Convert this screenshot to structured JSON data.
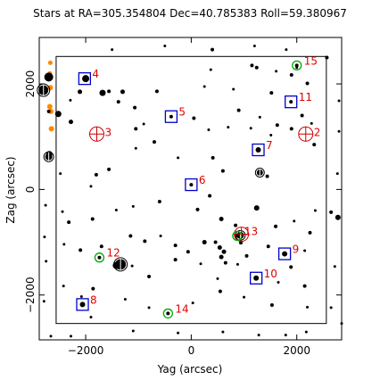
{
  "chart_data": {
    "type": "scatter",
    "title": "Stars at RA=305.354804 Dec=40.785383 Roll=59.380967",
    "xlabel": "Yag (arcsec)",
    "ylabel": "Zag (arcsec)",
    "xlim": [
      -2850,
      2880
    ],
    "ylim": [
      -2850,
      2880
    ],
    "reversed_x": true,
    "x_ticks": [
      -2000,
      0,
      2000
    ],
    "y_ticks": [
      -2000,
      0,
      2000
    ],
    "x_ticklabels": [
      "2000",
      "0",
      "−2000"
    ],
    "y_ticklabels": [
      "−2000",
      "0",
      "2000"
    ],
    "ccd_box": [
      -2560,
      2560,
      -2540,
      2520
    ],
    "label_color": "#e00000",
    "guide_color": "#0000cc",
    "acq_color": "#00aa00",
    "fid_color": "#cc0000",
    "bad_color": "#ff8800",
    "guide_stars": [
      {
        "id": "4",
        "x": 2020,
        "y": 2100
      },
      {
        "id": "5",
        "x": 380,
        "y": 1380
      },
      {
        "id": "6",
        "x": 0,
        "y": 90
      },
      {
        "id": "7",
        "x": -1270,
        "y": 750
      },
      {
        "id": "8",
        "x": 2060,
        "y": -2180
      },
      {
        "id": "9",
        "x": -1770,
        "y": -1220
      },
      {
        "id": "10",
        "x": -1230,
        "y": -1680
      },
      {
        "id": "11",
        "x": -1890,
        "y": 1660
      }
    ],
    "acq_stars": [
      {
        "id": "12",
        "x": 1740,
        "y": -1290
      },
      {
        "id": "13",
        "x": -870,
        "y": -880
      },
      {
        "id": "14",
        "x": 440,
        "y": -2350
      },
      {
        "id": "15",
        "x": -2000,
        "y": 2350
      }
    ],
    "fid_lights": [
      {
        "id": "2",
        "x": -2170,
        "y": 1050
      },
      {
        "id": "3",
        "x": 1790,
        "y": 1050
      },
      {
        "id": "f",
        "x": -950,
        "y": -850
      }
    ],
    "field_stars": [
      [
        2000,
        2100,
        4
      ],
      [
        1560,
        1860,
        2
      ],
      [
        1300,
        1850,
        2.5
      ],
      [
        650,
        1860,
        2
      ],
      [
        -250,
        1950,
        1.5
      ],
      [
        -1150,
        2350,
        2
      ],
      [
        -1240,
        2310,
        2
      ],
      [
        -370,
        2270,
        1.5
      ],
      [
        -1610,
        2240,
        1.5
      ],
      [
        -1900,
        2170,
        2
      ],
      [
        -2200,
        2010,
        2
      ],
      [
        -2000,
        2310,
        1.5
      ],
      [
        -2100,
        1400,
        2
      ],
      [
        -1520,
        1830,
        2
      ],
      [
        -800,
        1900,
        1.5
      ],
      [
        -900,
        1500,
        2
      ],
      [
        -1300,
        1370,
        1.5
      ],
      [
        -1630,
        1220,
        2
      ],
      [
        -2280,
        1250,
        1.5
      ],
      [
        -1900,
        1150,
        2
      ],
      [
        1680,
        1830,
        3.5
      ],
      [
        1380,
        1660,
        2
      ],
      [
        1070,
        1550,
        2
      ],
      [
        1050,
        1150,
        2
      ],
      [
        900,
        1240,
        1.5
      ],
      [
        2280,
        1280,
        2.5
      ],
      [
        2110,
        1850,
        2.5
      ],
      [
        2290,
        1690,
        1.5
      ],
      [
        2520,
        1430,
        3.5
      ],
      [
        2700,
        2130,
        5
      ],
      [
        2700,
        1480,
        2
      ],
      [
        2690,
        670,
        3.5
      ],
      [
        -50,
        1350,
        2
      ],
      [
        -330,
        1130,
        1.5
      ],
      [
        -700,
        1180,
        1.5
      ],
      [
        -1130,
        1160,
        1.5
      ],
      [
        -1510,
        1030,
        1.5
      ],
      [
        -2330,
        850,
        2
      ],
      [
        -1270,
        750,
        3
      ],
      [
        -1440,
        250,
        2
      ],
      [
        -1300,
        320,
        3
      ],
      [
        -600,
        350,
        2
      ],
      [
        -410,
        600,
        2
      ],
      [
        250,
        600,
        1.5
      ],
      [
        700,
        900,
        2
      ],
      [
        1050,
        780,
        1.5
      ],
      [
        1560,
        380,
        2
      ],
      [
        1800,
        280,
        2
      ],
      [
        1900,
        60,
        1.5
      ],
      [
        2480,
        300,
        1.5
      ],
      [
        2440,
        -420,
        1.5
      ],
      [
        2320,
        -620,
        2
      ],
      [
        1870,
        -560,
        2
      ],
      [
        1420,
        -390,
        1.5
      ],
      [
        1100,
        -320,
        1.5
      ],
      [
        600,
        -230,
        2
      ],
      [
        -120,
        -380,
        2
      ],
      [
        -350,
        -120,
        2
      ],
      [
        -570,
        -560,
        2.5
      ],
      [
        -840,
        -680,
        2
      ],
      [
        -1240,
        -350,
        3
      ],
      [
        -1600,
        -700,
        2
      ],
      [
        -1950,
        -600,
        1.5
      ],
      [
        -2250,
        -820,
        2
      ],
      [
        -2350,
        -400,
        1.5
      ],
      [
        -2650,
        -430,
        2
      ],
      [
        2410,
        -1040,
        1.5
      ],
      [
        2100,
        -1150,
        2
      ],
      [
        1700,
        -1080,
        2
      ],
      [
        1150,
        -880,
        2
      ],
      [
        880,
        -980,
        2
      ],
      [
        580,
        -880,
        1.5
      ],
      [
        300,
        -1060,
        2
      ],
      [
        60,
        -1180,
        2
      ],
      [
        -250,
        -1000,
        2.5
      ],
      [
        -460,
        -1000,
        2
      ],
      [
        -540,
        -1100,
        2.5
      ],
      [
        -620,
        -1180,
        2.5
      ],
      [
        -570,
        -1280,
        2.5
      ],
      [
        -650,
        -1390,
        2
      ],
      [
        -940,
        -1010,
        2
      ],
      [
        -1050,
        -1260,
        2
      ],
      [
        -1460,
        -1080,
        2
      ],
      [
        -1770,
        -1220,
        3
      ],
      [
        -1890,
        -1470,
        2
      ],
      [
        -2150,
        -1160,
        1.5
      ],
      [
        1420,
        -1440,
        4
      ],
      [
        1120,
        -1450,
        1.5
      ],
      [
        800,
        -1650,
        2
      ],
      [
        300,
        -1330,
        2
      ],
      [
        -180,
        -1410,
        1.5
      ],
      [
        -500,
        -1690,
        1.5
      ],
      [
        -880,
        -1420,
        1.5
      ],
      [
        -1230,
        -1680,
        3
      ],
      [
        -1650,
        -1760,
        1.5
      ],
      [
        -2150,
        -1830,
        2
      ],
      [
        2420,
        -1830,
        1.5
      ],
      [
        2080,
        -2030,
        1.5
      ],
      [
        1860,
        -1880,
        2
      ],
      [
        1250,
        -2080,
        1.5
      ],
      [
        800,
        -2240,
        1.5
      ],
      [
        -30,
        -2150,
        1.5
      ],
      [
        -550,
        -1930,
        2
      ],
      [
        -1000,
        -2040,
        1.5
      ],
      [
        -1530,
        -2190,
        2
      ],
      [
        -2200,
        -2230,
        1.5
      ],
      [
        2060,
        -2180,
        3
      ],
      [
        2660,
        -2780,
        1.5
      ],
      [
        2280,
        -2780,
        1.5
      ],
      [
        1100,
        -2680,
        1.5
      ],
      [
        250,
        -2720,
        1.5
      ],
      [
        -600,
        -2700,
        1.5
      ],
      [
        -1280,
        -2760,
        1.5
      ],
      [
        -1790,
        -2760,
        1.5
      ],
      [
        -2180,
        -2700,
        1.5
      ],
      [
        1900,
        -2420,
        1.5
      ],
      [
        2790,
        -2120,
        1.5
      ],
      [
        2750,
        -1360,
        1.5
      ],
      [
        2780,
        -900,
        1.5
      ],
      [
        2760,
        -300,
        1.5
      ],
      [
        -2800,
        1680,
        1.5
      ],
      [
        -2800,
        1100,
        1.5
      ],
      [
        -2770,
        300,
        1.5
      ],
      [
        -2780,
        -530,
        3
      ],
      [
        -2720,
        -1460,
        1.5
      ],
      [
        -2650,
        -2240,
        1.5
      ],
      [
        -2850,
        -2540,
        1.5
      ],
      [
        1500,
        2650,
        1.5
      ],
      [
        500,
        2720,
        1.5
      ],
      [
        -400,
        2650,
        2
      ],
      [
        -1200,
        2720,
        1.5
      ],
      [
        -1800,
        2650,
        1.5
      ],
      [
        -2570,
        2500,
        2
      ]
    ],
    "bright_rings": [
      {
        "x": 1340,
        "y": -1420,
        "r": 6
      },
      {
        "x": 2800,
        "y": 1880,
        "r": 5.5
      },
      {
        "x": 2700,
        "y": 620,
        "r": 4
      },
      {
        "x": -930,
        "y": -870,
        "r": 4
      },
      {
        "x": -1300,
        "y": 320,
        "r": 3.5
      }
    ],
    "bad_stars": [
      [
        2670,
        2400,
        2.5
      ],
      [
        2680,
        2200,
        2.5
      ],
      [
        2670,
        1930,
        3
      ],
      [
        2680,
        1570,
        3
      ],
      [
        2660,
        1480,
        3
      ],
      [
        2650,
        1150,
        3
      ]
    ]
  }
}
